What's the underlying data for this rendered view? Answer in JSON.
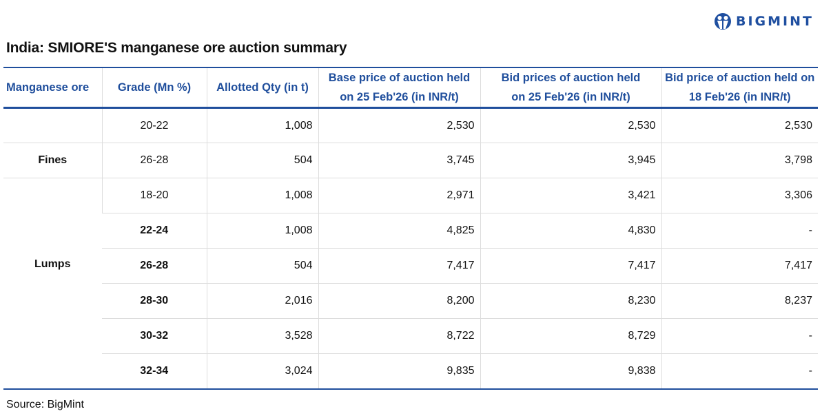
{
  "logo": {
    "text": "BIGMINT",
    "color": "#1f4fa0"
  },
  "title": "India:  SMIORE'S manganese ore auction summary",
  "chart_data": {
    "type": "table",
    "title": "India:  SMIORE'S manganese ore auction summary",
    "columns": [
      "Manganese ore type",
      "Grade (Mn %)",
      "Allotted Qty (in t)",
      "Base price of auction held on 25 Feb'26  (in INR/t)",
      "Bid prices of auction held on 25 Feb'26 (in INR/t)",
      "Bid price of auction held on 18 Feb'26 (in INR/t)"
    ],
    "columns_visible": [
      "Manganese ore",
      "Grade (Mn %)",
      "Allotted Qty (in t)",
      "Base price of auction held on 25 Feb'26  (in INR/t)",
      "Bid prices of auction held on 25 Feb'26 (in INR/t)",
      "Bid price of auction held on 18 Feb'26 (in INR/t)"
    ],
    "groups": [
      {
        "label": "Fines",
        "rows": [
          0,
          1
        ]
      },
      {
        "label": "Lumps",
        "rows": [
          2,
          3,
          4,
          5,
          6,
          7
        ]
      }
    ],
    "rows": [
      {
        "type": "",
        "grade": "20-22",
        "qty": "1,008",
        "base": "2,530",
        "bid25": "2,530",
        "bid18": "2,530"
      },
      {
        "type": "Fines",
        "grade": "26-28",
        "qty": "504",
        "base": "3,745",
        "bid25": "3,945",
        "bid18": "3,798"
      },
      {
        "type": "",
        "grade": "18-20",
        "qty": "1,008",
        "base": "2,971",
        "bid25": "3,421",
        "bid18": "3,306"
      },
      {
        "type": "",
        "grade": "22-24",
        "qty": "1,008",
        "base": "4,825",
        "bid25": "4,830",
        "bid18": "-"
      },
      {
        "type": "Lumps",
        "grade": "26-28",
        "qty": "504",
        "base": "7,417",
        "bid25": "7,417",
        "bid18": "7,417"
      },
      {
        "type": "",
        "grade": "28-30",
        "qty": "2,016",
        "base": "8,200",
        "bid25": "8,230",
        "bid18": "8,237"
      },
      {
        "type": "",
        "grade": "30-32",
        "qty": "3,528",
        "base": "8,722",
        "bid25": "8,729",
        "bid18": "-"
      },
      {
        "type": "",
        "grade": "32-34",
        "qty": "3,024",
        "base": "9,835",
        "bid25": "9,838",
        "bid18": "-"
      }
    ],
    "header_color": "#1f4e9c"
  },
  "source": "Source: BigMint"
}
